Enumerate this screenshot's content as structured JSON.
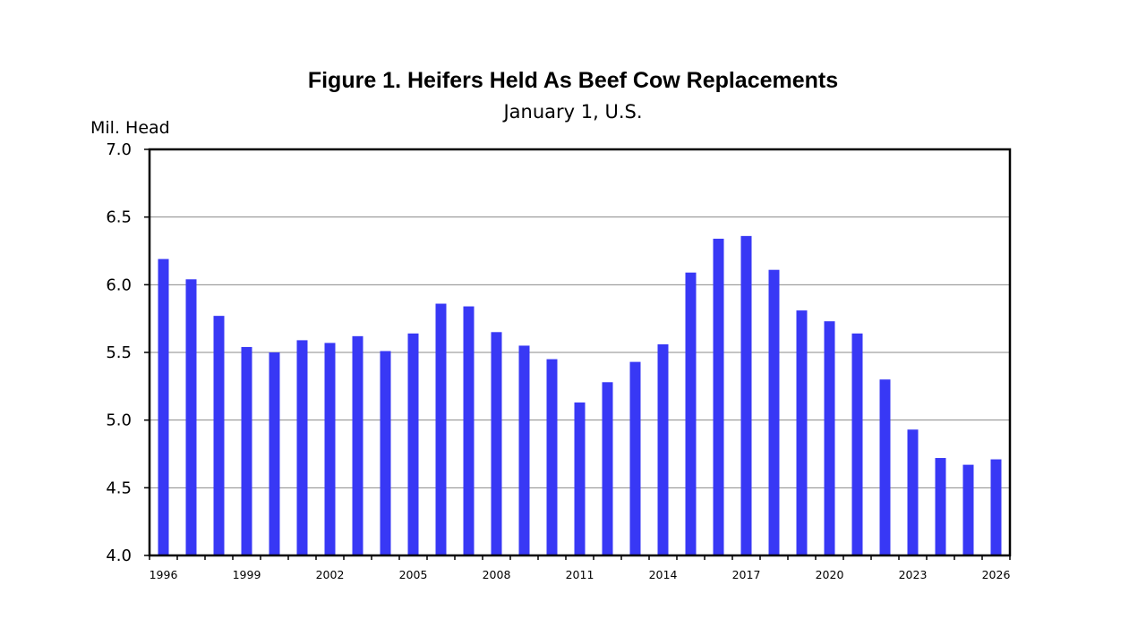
{
  "chart_data": {
    "type": "bar",
    "title": "Figure 1. Heifers Held As Beef Cow Replacements",
    "subtitle": "January 1, U.S.",
    "ylabel": "Mil. Head",
    "xlabel": "",
    "ylim": [
      4.0,
      7.0
    ],
    "yticks": [
      "4.0",
      "4.5",
      "5.0",
      "5.5",
      "6.0",
      "6.5",
      "7.0"
    ],
    "grid": true,
    "bar_color": "#3838F5",
    "categories": [
      "1996",
      "1997",
      "1998",
      "1999",
      "2000",
      "2001",
      "2002",
      "2003",
      "2004",
      "2005",
      "2006",
      "2007",
      "2008",
      "2009",
      "2010",
      "2011",
      "2012",
      "2013",
      "2014",
      "2015",
      "2016",
      "2017",
      "2018",
      "2019",
      "2020",
      "2021",
      "2022",
      "2023",
      "2024",
      "2025",
      "2026"
    ],
    "x_tick_labels": [
      "1996",
      "1999",
      "2002",
      "2005",
      "2008",
      "2011",
      "2014",
      "2017",
      "2020",
      "2023",
      "2026"
    ],
    "values": [
      6.19,
      6.04,
      5.77,
      5.54,
      5.5,
      5.59,
      5.57,
      5.62,
      5.51,
      5.64,
      5.86,
      5.84,
      5.65,
      5.55,
      5.45,
      5.13,
      5.28,
      5.43,
      5.56,
      6.09,
      6.34,
      6.36,
      6.11,
      5.81,
      5.73,
      5.64,
      5.3,
      4.93,
      4.72,
      4.67,
      4.71
    ]
  }
}
